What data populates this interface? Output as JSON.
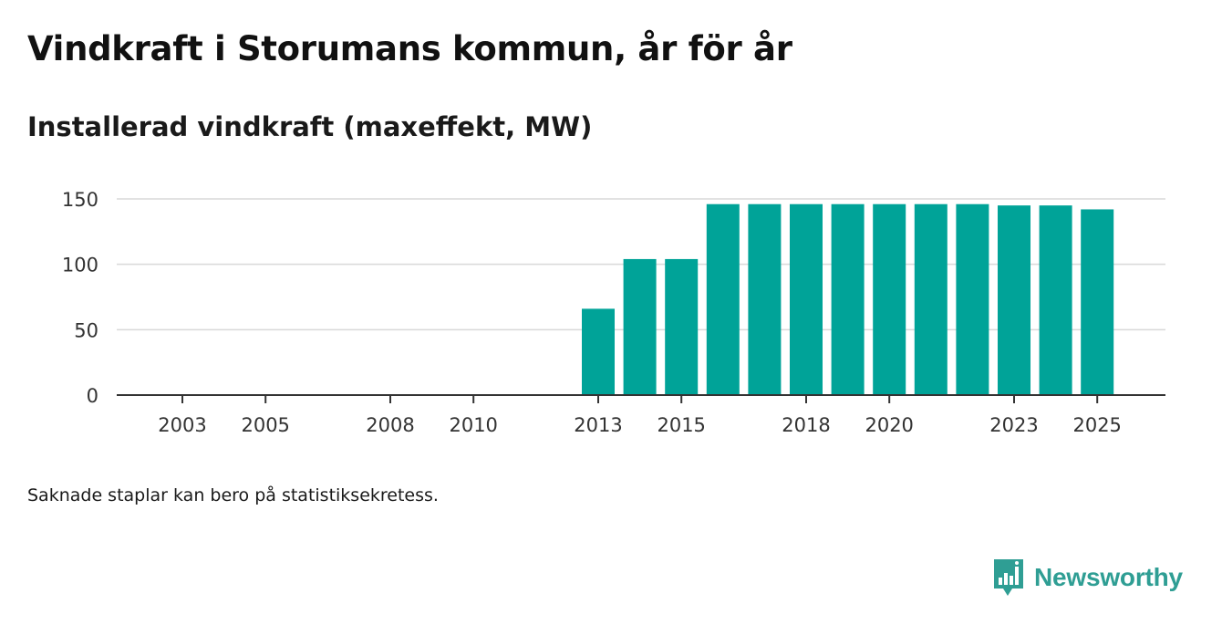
{
  "chart_data": {
    "type": "bar",
    "title": "Vindkraft i Storumans kommun, år för år",
    "subtitle": "Installerad vindkraft (maxeffekt, MW)",
    "xlabel": "",
    "ylabel": "",
    "ylim": [
      0,
      150
    ],
    "yticks": [
      0,
      50,
      100,
      150
    ],
    "grid": true,
    "bar_color": "#00a398",
    "categories": [
      "2003",
      "2004",
      "2005",
      "2006",
      "2007",
      "2008",
      "2009",
      "2010",
      "2011",
      "2012",
      "2013",
      "2014",
      "2015",
      "2016",
      "2017",
      "2018",
      "2019",
      "2020",
      "2021",
      "2022",
      "2023",
      "2024",
      "2025"
    ],
    "xtick_labels": [
      "2003",
      "2005",
      "2008",
      "2010",
      "2013",
      "2015",
      "2018",
      "2020",
      "2023",
      "2025"
    ],
    "values": [
      null,
      null,
      null,
      null,
      null,
      null,
      null,
      null,
      null,
      null,
      66,
      104,
      104,
      146,
      146,
      146,
      146,
      146,
      146,
      146,
      145,
      145,
      142
    ]
  },
  "note": "Saknade staplar kan bero på statistiksekretess.",
  "logo": {
    "text": "Newsworthy",
    "color": "#2f9e94"
  }
}
